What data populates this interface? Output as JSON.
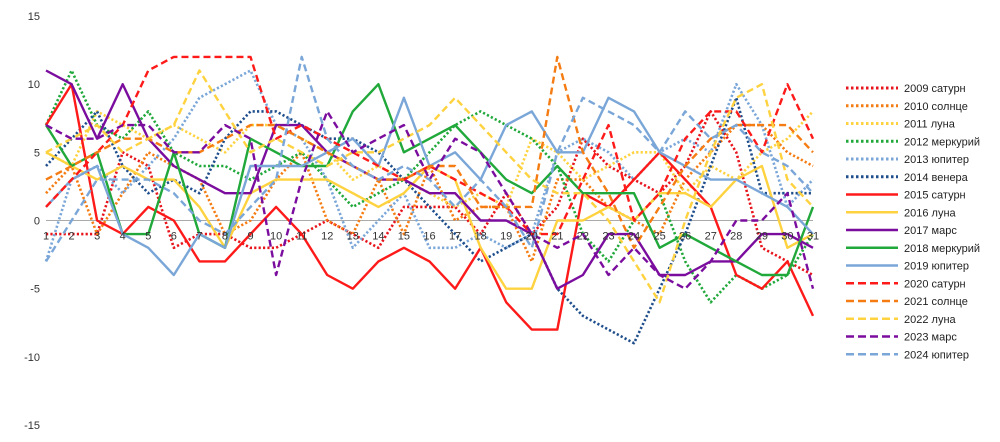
{
  "chart_data": {
    "type": "line",
    "title": "",
    "xlabel": "",
    "ylabel": "",
    "ylim": [
      -15,
      15
    ],
    "yticks": [
      -15,
      -10,
      -5,
      0,
      5,
      10,
      15
    ],
    "x": [
      1,
      2,
      3,
      4,
      5,
      6,
      7,
      8,
      9,
      10,
      11,
      12,
      13,
      14,
      15,
      16,
      17,
      18,
      19,
      20,
      21,
      22,
      23,
      24,
      25,
      26,
      27,
      28,
      29,
      30,
      31
    ],
    "x_labels": [
      "1",
      "2",
      "3",
      "4",
      "5",
      "6",
      "7",
      "8",
      "9",
      "10",
      "11",
      "12",
      "13",
      "14",
      "15",
      "16",
      "17",
      "18",
      "19",
      "20",
      "21",
      "22",
      "23",
      "24",
      "25",
      "26",
      "27",
      "28",
      "29",
      "30",
      "31"
    ],
    "grid": false,
    "legend_position": "right",
    "series": [
      {
        "name": "2009 сатурн",
        "color": "#e8141c",
        "dash": "dotted",
        "values": [
          -1,
          -1,
          -1,
          5,
          4,
          -2,
          -1,
          -1,
          -2,
          -2,
          -1,
          0,
          -1,
          -2,
          1,
          1,
          1,
          -1,
          2,
          -1,
          1,
          6,
          4,
          3,
          2,
          4,
          8,
          5,
          -2,
          -3,
          -4
        ]
      },
      {
        "name": "2010 солнце",
        "color": "#f57c12",
        "dash": "dotted",
        "values": [
          2,
          4,
          -1,
          2,
          5,
          4,
          3,
          -1,
          0,
          3,
          5,
          0,
          -1,
          3,
          -1,
          4,
          0,
          1,
          1,
          -3,
          3,
          3,
          1,
          0,
          -1,
          3,
          5,
          7,
          7,
          5,
          4
        ]
      },
      {
        "name": "2011 луна",
        "color": "#ffd23f",
        "dash": "dotted",
        "values": [
          5,
          4,
          8,
          7,
          6,
          7,
          6,
          5,
          7,
          7,
          6,
          5,
          3,
          4,
          3,
          2,
          1,
          2,
          1,
          6,
          5,
          3,
          4,
          5,
          5,
          2,
          4,
          3,
          5,
          6,
          8
        ]
      },
      {
        "name": "2012 меркурий",
        "color": "#20a83a",
        "dash": "dotted",
        "values": [
          7,
          11,
          7,
          6,
          8,
          5,
          4,
          4,
          3,
          4,
          5,
          3,
          1,
          2,
          3,
          5,
          7,
          8,
          7,
          6,
          4,
          -1,
          -3,
          0,
          2,
          -3,
          -6,
          -4,
          -5,
          -4,
          -1
        ]
      },
      {
        "name": "2013 юпитер",
        "color": "#7aa6d8",
        "dash": "dotted",
        "values": [
          -3,
          3,
          4,
          2,
          4,
          6,
          9,
          10,
          11,
          7,
          6,
          3,
          -2,
          0,
          2,
          -2,
          -2,
          -1,
          -2,
          -1,
          5,
          6,
          5,
          3,
          5,
          6,
          5,
          10,
          7,
          1,
          3
        ]
      },
      {
        "name": "2014 венера",
        "color": "#1f4e8c",
        "dash": "dotted",
        "values": [
          4,
          6,
          8,
          4,
          2,
          3,
          2,
          6,
          8,
          8,
          7,
          6,
          6,
          5,
          3,
          1,
          -1,
          -3,
          -2,
          -1,
          -5,
          -7,
          -8,
          -9,
          -5,
          -1,
          4,
          9,
          2,
          2,
          2
        ]
      },
      {
        "name": "2015 сатурн",
        "color": "#ff1a1a",
        "dash": "solid",
        "values": [
          7,
          10,
          0,
          -1,
          1,
          0,
          -3,
          -3,
          -1,
          1,
          -1,
          -4,
          -5,
          -3,
          -2,
          -3,
          -5,
          -2,
          -6,
          -8,
          -8,
          2,
          1,
          3,
          5,
          3,
          1,
          -4,
          -5,
          -3,
          -7
        ]
      },
      {
        "name": "2016 луна",
        "color": "#ffd23f",
        "dash": "solid",
        "values": [
          5,
          4,
          3,
          4,
          3,
          3,
          1,
          -2,
          2,
          3,
          3,
          3,
          2,
          1,
          2,
          4,
          3,
          -2,
          -5,
          -5,
          0,
          0,
          1,
          0,
          2,
          2,
          1,
          3,
          4,
          -2,
          -1
        ]
      },
      {
        "name": "2017 марс",
        "color": "#7b0d9e",
        "dash": "solid",
        "values": [
          11,
          10,
          6,
          10,
          6,
          4,
          3,
          2,
          2,
          7,
          7,
          5,
          4,
          3,
          3,
          2,
          2,
          0,
          0,
          -1,
          -5,
          -4,
          -1,
          -1,
          -4,
          -4,
          -3,
          -3,
          -1,
          -1,
          -2
        ]
      },
      {
        "name": "2018 меркурий",
        "color": "#20a83a",
        "dash": "solid",
        "values": [
          7,
          4,
          5,
          -1,
          -1,
          5,
          -1,
          -2,
          6,
          5,
          4,
          4,
          8,
          10,
          5,
          6,
          7,
          5,
          3,
          2,
          4,
          2,
          2,
          2,
          -2,
          -1,
          -2,
          -3,
          -4,
          -4,
          1
        ]
      },
      {
        "name": "2019 юпитер",
        "color": "#7aa6d8",
        "dash": "solid",
        "values": [
          1,
          3,
          4,
          -1,
          -2,
          -4,
          -1,
          -2,
          4,
          4,
          4,
          5,
          6,
          4,
          9,
          4,
          5,
          3,
          7,
          8,
          5,
          5,
          9,
          8,
          5,
          4,
          3,
          3,
          2,
          1,
          -1
        ]
      },
      {
        "name": "2020 сатурн",
        "color": "#ff1a1a",
        "dash": "dashed",
        "values": [
          1,
          3,
          5,
          7,
          11,
          12,
          12,
          12,
          12,
          6,
          7,
          6,
          5,
          4,
          3,
          4,
          3,
          2,
          1,
          -1,
          -1,
          3,
          7,
          0,
          2,
          6,
          8,
          8,
          5,
          10,
          6
        ]
      },
      {
        "name": "2021 солнце",
        "color": "#f57c12",
        "dash": "dashed",
        "values": [
          3,
          4,
          5,
          6,
          6,
          5,
          5,
          6,
          7,
          7,
          6,
          5,
          4,
          3,
          3,
          4,
          4,
          1,
          1,
          1,
          12,
          5,
          2,
          -2,
          1,
          4,
          6,
          7,
          7,
          7,
          5
        ]
      },
      {
        "name": "2022 луна",
        "color": "#ffd23f",
        "dash": "dashed",
        "values": [
          5,
          6,
          7,
          5,
          6,
          7,
          11,
          8,
          5,
          6,
          5,
          4,
          5,
          5,
          6,
          7,
          9,
          7,
          5,
          3,
          2,
          2,
          0,
          -3,
          -6,
          0,
          5,
          9,
          10,
          3,
          1
        ]
      },
      {
        "name": "2023 марс",
        "color": "#7b0d9e",
        "dash": "dashed",
        "values": [
          7,
          6,
          6,
          7,
          7,
          5,
          5,
          7,
          6,
          -4,
          3,
          8,
          5,
          6,
          7,
          3,
          6,
          5,
          2,
          -1,
          -2,
          -1,
          -4,
          -2,
          -4,
          -5,
          -3,
          0,
          0,
          2,
          -5
        ]
      },
      {
        "name": "2024 юпитер",
        "color": "#7aa6d8",
        "dash": "dashed",
        "values": [
          -3,
          0,
          3,
          3,
          3,
          2,
          0,
          -1,
          1,
          3,
          12,
          6,
          4,
          3,
          4,
          3,
          1,
          3,
          1,
          -2,
          5,
          9,
          8,
          7,
          5,
          8,
          6,
          7,
          5,
          4,
          2
        ]
      }
    ]
  }
}
